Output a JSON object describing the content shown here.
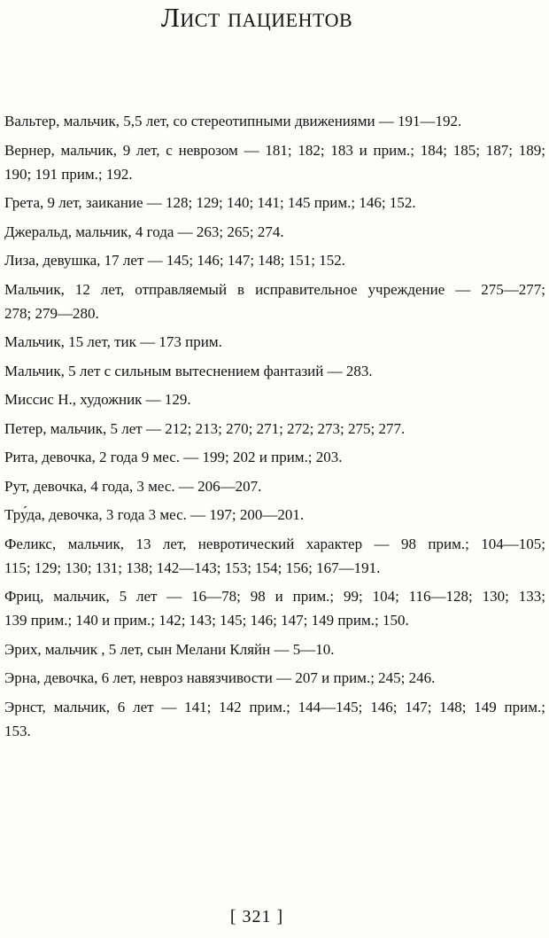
{
  "page": {
    "title": "Лист пациентов",
    "page_number": "[ 321 ]",
    "entries": [
      {
        "lines": [
          "Вальтер, мальчик, 5,5 лет, со стереотипными движениями — 191—192."
        ]
      },
      {
        "lines": [
          "Вернер, мальчик, 9 лет, с неврозом — 181; 182; 183 и прим.; 184; 185; 187; 189;",
          "190; 191 прим.; 192."
        ]
      },
      {
        "lines": [
          "Грета, 9 лет, заикание — 128; 129; 140; 141; 145 прим.; 146; 152."
        ]
      },
      {
        "lines": [
          "Джеральд, мальчик, 4 года — 263; 265; 274."
        ]
      },
      {
        "lines": [
          "Лиза, девушка, 17 лет — 145; 146; 147; 148; 151; 152."
        ]
      },
      {
        "lines": [
          "Мальчик, 12 лет, отправляемый в исправительное учреждение — 275—277;",
          "278; 279—280."
        ]
      },
      {
        "lines": [
          "Мальчик, 15 лет, тик — 173 прим."
        ]
      },
      {
        "lines": [
          "Мальчик, 5 лет с сильным вытеснением фантазий — 283."
        ]
      },
      {
        "lines": [
          "Миссис Н., художник — 129."
        ]
      },
      {
        "lines": [
          "Петер, мальчик, 5 лет — 212; 213; 270; 271; 272; 273; 275; 277."
        ]
      },
      {
        "lines": [
          "Рита, девочка, 2 года 9 мес. — 199; 202 и прим.; 203."
        ]
      },
      {
        "lines": [
          "Рут, девочка, 4 года, 3 мес. — 206—207."
        ]
      },
      {
        "lines": [
          "Тру́да, девочка, 3 года 3 мес. — 197; 200—201."
        ]
      },
      {
        "lines": [
          "Феликс, мальчик, 13 лет, невротический характер — 98 прим.; 104—105;",
          "115; 129; 130; 131; 138; 142—143; 153; 154; 156; 167—191."
        ]
      },
      {
        "lines": [
          "Фриц, мальчик, 5 лет — 16—78; 98 и прим.; 99; 104; 116—128; 130; 133;",
          "139 прим.; 140 и прим.; 142; 143; 145; 146; 147; 149 прим.; 150."
        ]
      },
      {
        "lines": [
          "Эрих, мальчик , 5 лет, сын Мелани Кляйн — 5—10."
        ]
      },
      {
        "lines": [
          "Эрна, девочка, 6 лет, невроз навязчивости — 207 и прим.; 245; 246."
        ]
      },
      {
        "lines": [
          "Эрнст, мальчик, 6 лет — 141; 142 прим.; 144—145; 146; 147; 148; 149 прим.;",
          "153."
        ]
      }
    ]
  }
}
